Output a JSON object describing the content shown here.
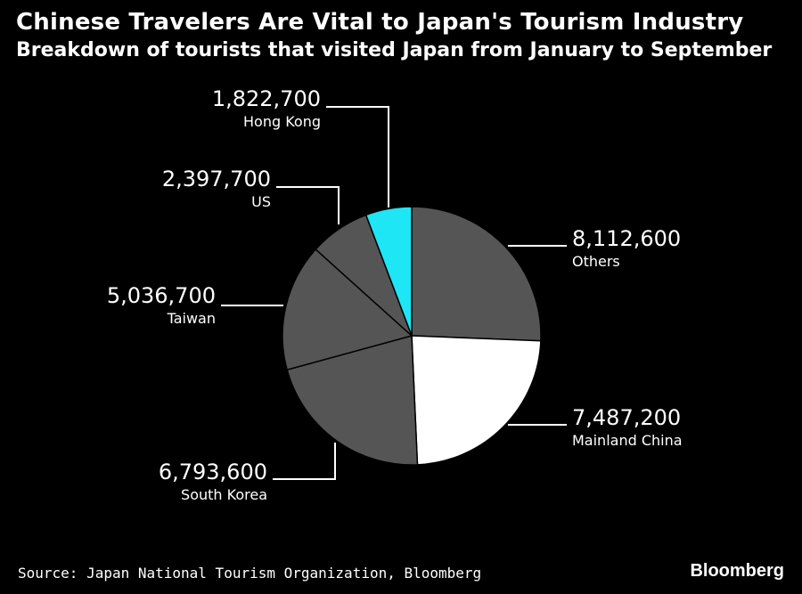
{
  "header": {
    "title": "Chinese Travelers Are Vital to Japan's Tourism Industry",
    "subtitle": "Breakdown of tourists that visited Japan from January to September"
  },
  "chart_data": {
    "type": "pie",
    "start_angle_deg": 0,
    "direction": "clockwise",
    "slices": [
      {
        "label": "Others",
        "value": 8112600,
        "value_label": "8,112,600",
        "color": "#555555"
      },
      {
        "label": "Mainland China",
        "value": 7487200,
        "value_label": "7,487,200",
        "color": "#ffffff"
      },
      {
        "label": "South Korea",
        "value": 6793600,
        "value_label": "6,793,600",
        "color": "#555555"
      },
      {
        "label": "Taiwan",
        "value": 5036700,
        "value_label": "5,036,700",
        "color": "#555555"
      },
      {
        "label": "US",
        "value": 2397700,
        "value_label": "2,397,700",
        "color": "#555555"
      },
      {
        "label": "Hong Kong",
        "value": 1822700,
        "value_label": "1,822,700",
        "color": "#1ee6f5"
      }
    ],
    "legend": "none"
  },
  "footer": {
    "source": "Source: Japan National Tourism Organization, Bloomberg",
    "brand": "Bloomberg"
  }
}
